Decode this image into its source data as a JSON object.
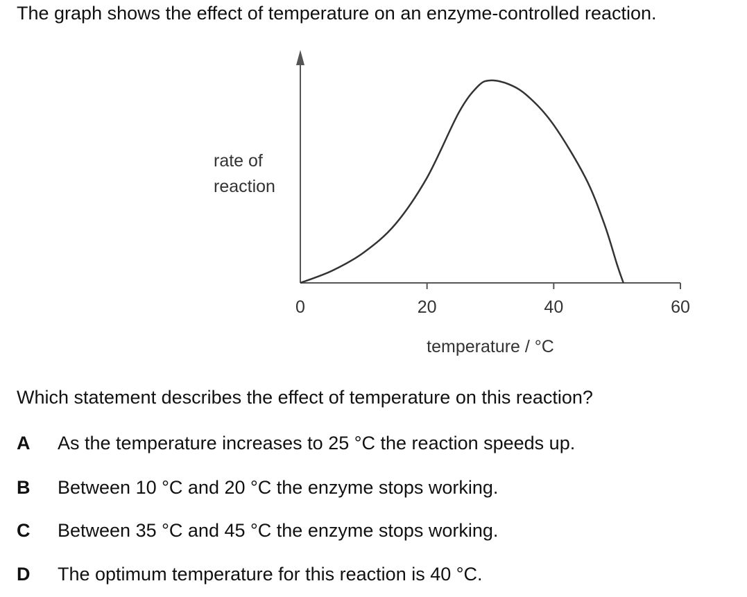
{
  "intro": "The graph shows the effect of temperature on an enzyme-controlled reaction.",
  "chart_data": {
    "type": "line",
    "ylabel_lines": [
      "rate of",
      "reaction"
    ],
    "xlabel": "temperature / °C",
    "x_ticks": [
      0,
      20,
      40,
      60
    ],
    "xlim": [
      0,
      60
    ],
    "ylim": [
      0,
      100
    ],
    "y_tick_labels": "none",
    "grid": false,
    "series": [
      {
        "x": [
          0,
          5,
          10,
          15,
          20,
          25,
          28,
          30,
          33,
          36,
          40,
          45,
          48,
          50,
          51
        ],
        "y": [
          0,
          6,
          15,
          29,
          52,
          84,
          97,
          100,
          98,
          92,
          78,
          52,
          29,
          9,
          0
        ]
      }
    ]
  },
  "question": "Which statement describes the effect of temperature on this reaction?",
  "options": [
    {
      "letter": "A",
      "text": "As the temperature increases to 25 °C the reaction speeds up."
    },
    {
      "letter": "B",
      "text": "Between 10 °C and 20 °C the enzyme stops working."
    },
    {
      "letter": "C",
      "text": "Between 35 °C and 45 °C the enzyme stops working."
    },
    {
      "letter": "D",
      "text": "The optimum temperature for this reaction is 40 °C."
    }
  ]
}
